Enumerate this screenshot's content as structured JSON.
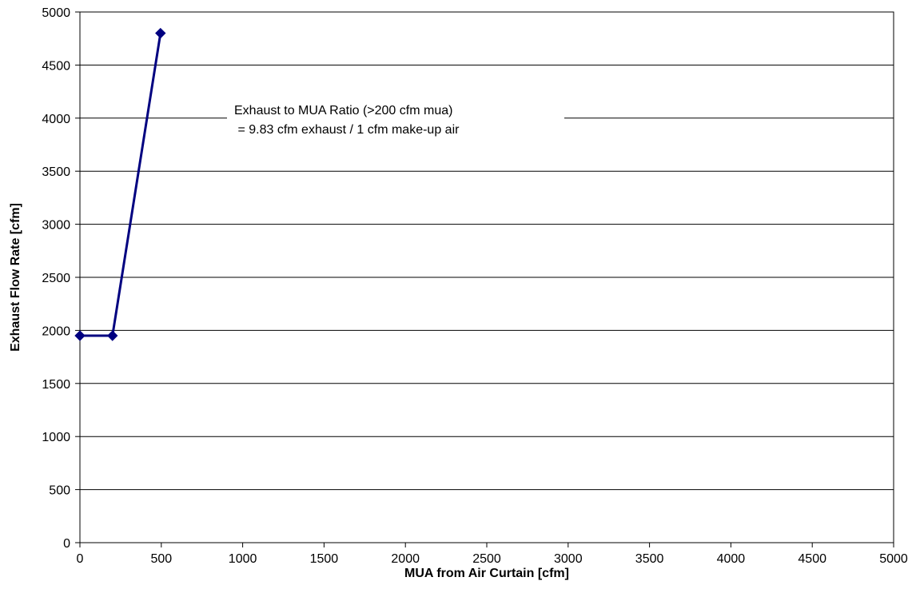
{
  "chart_data": {
    "type": "line",
    "title": "",
    "xlabel": "MUA from Air Curtain [cfm]",
    "ylabel": "Exhaust Flow Rate [cfm]",
    "xlim": [
      0,
      5000
    ],
    "ylim": [
      0,
      5000
    ],
    "x_ticks": [
      0,
      500,
      1000,
      1500,
      2000,
      2500,
      3000,
      3500,
      4000,
      4500,
      5000
    ],
    "y_ticks": [
      0,
      500,
      1000,
      1500,
      2000,
      2500,
      3000,
      3500,
      4000,
      4500,
      5000
    ],
    "grid": "horizontal major gridlines",
    "legend": "none",
    "series": [
      {
        "color": "#000080",
        "marker": "diamond",
        "points": [
          {
            "x": 0,
            "y": 1950
          },
          {
            "x": 200,
            "y": 1950
          },
          {
            "x": 495,
            "y": 4800
          }
        ]
      }
    ],
    "annotation": {
      "line1": "Exhaust to MUA Ratio (>200 cfm mua)",
      "line2": " = 9.83 cfm exhaust / 1 cfm make-up air"
    }
  }
}
